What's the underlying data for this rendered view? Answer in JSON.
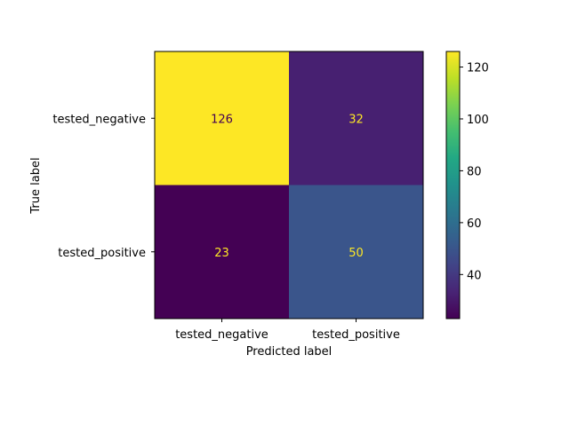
{
  "chart_data": {
    "type": "heatmap",
    "title": "",
    "xlabel": "Predicted label",
    "ylabel": "True label",
    "x_categories": [
      "tested_negative",
      "tested_positive"
    ],
    "y_categories": [
      "tested_negative",
      "tested_positive"
    ],
    "matrix": [
      [
        126,
        32
      ],
      [
        23,
        50
      ]
    ],
    "colormap": "viridis",
    "colorbar": {
      "min": 23,
      "max": 126,
      "ticks": [
        40,
        60,
        80,
        100,
        120
      ],
      "tick_labels": [
        "40",
        "60",
        "80",
        "100",
        "120"
      ]
    },
    "grid": false
  },
  "colors": {
    "value_text_on_light": "#440154",
    "value_text_on_dark": "#fde725"
  }
}
